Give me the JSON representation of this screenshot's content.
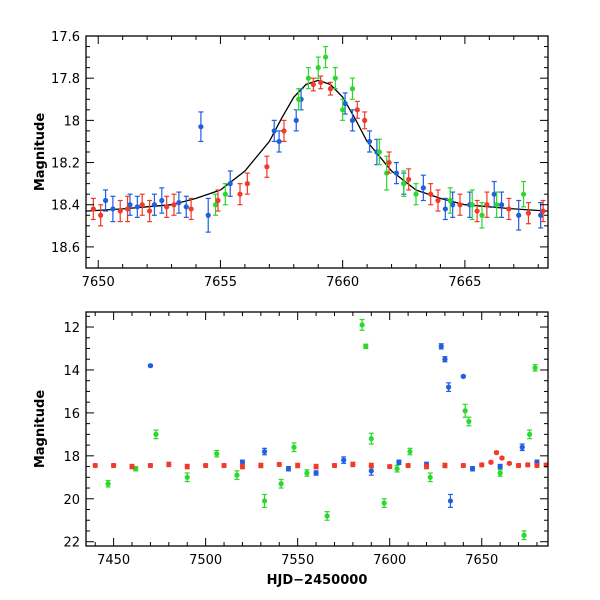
{
  "chart_data": [
    {
      "type": "scatter",
      "panel": "top",
      "xlabel": "",
      "ylabel": "Magnitude",
      "xlim": [
        7649.5,
        7668.4
      ],
      "ylim": [
        18.7,
        17.6
      ],
      "y_inverted": true,
      "xticks": [
        7650,
        7655,
        7660,
        7665
      ],
      "yticks": [
        17.6,
        17.8,
        18,
        18.2,
        18.4,
        18.6
      ],
      "ytick_labels": [
        "17.6",
        "17.8",
        "18",
        "18.2",
        "18.4",
        "18.6"
      ],
      "model": {
        "name": "model",
        "color": "#000000",
        "x": [
          7649.5,
          7651,
          7652,
          7653,
          7654,
          7655,
          7656,
          7657,
          7657.5,
          7658,
          7658.5,
          7659,
          7659.5,
          7660,
          7660.5,
          7661,
          7662,
          7663,
          7664,
          7665,
          7666,
          7667,
          7668.4
        ],
        "y": [
          18.43,
          18.42,
          18.41,
          18.4,
          18.37,
          18.33,
          18.24,
          18.1,
          17.99,
          17.89,
          17.83,
          17.81,
          17.83,
          17.89,
          17.99,
          18.1,
          18.24,
          18.33,
          18.37,
          18.4,
          18.41,
          18.42,
          18.43
        ]
      },
      "series": [
        {
          "name": "blue",
          "color": "#1f5fe0",
          "x": [
            7650.3,
            7650.6,
            7651.3,
            7651.6,
            7652.3,
            7652.6,
            7653.3,
            7653.6,
            7654.2,
            7654.5,
            7655.4,
            7657.2,
            7657.4,
            7658.1,
            7658.3,
            7660.1,
            7660.4,
            7661.1,
            7661.4,
            7662.2,
            7662.5,
            7663.3,
            7664.2,
            7664.5,
            7665.2,
            7666.2,
            7666.5,
            7667.2,
            7668.1
          ],
          "y": [
            18.38,
            18.42,
            18.4,
            18.41,
            18.4,
            18.38,
            18.39,
            18.41,
            18.03,
            18.45,
            18.3,
            18.05,
            18.1,
            18.0,
            17.9,
            17.92,
            18.0,
            18.1,
            18.15,
            18.25,
            18.3,
            18.32,
            18.42,
            18.4,
            18.4,
            18.35,
            18.4,
            18.45,
            18.45
          ],
          "err": [
            0.05,
            0.06,
            0.05,
            0.05,
            0.05,
            0.06,
            0.05,
            0.05,
            0.07,
            0.08,
            0.06,
            0.05,
            0.05,
            0.05,
            0.05,
            0.05,
            0.05,
            0.05,
            0.06,
            0.05,
            0.05,
            0.06,
            0.05,
            0.06,
            0.06,
            0.06,
            0.06,
            0.07,
            0.06
          ]
        },
        {
          "name": "green",
          "color": "#2bd82b",
          "x": [
            7654.8,
            7655.2,
            7658.2,
            7658.6,
            7659.0,
            7659.3,
            7659.7,
            7660.0,
            7660.4,
            7661.5,
            7661.8,
            7662.5,
            7663.0,
            7664.4,
            7665.3,
            7665.7,
            7666.3,
            7667.4
          ],
          "y": [
            18.4,
            18.35,
            17.9,
            17.8,
            17.75,
            17.7,
            17.8,
            17.95,
            17.85,
            18.15,
            18.25,
            18.3,
            18.35,
            18.38,
            18.4,
            18.45,
            18.4,
            18.35
          ],
          "err": [
            0.05,
            0.05,
            0.05,
            0.05,
            0.05,
            0.05,
            0.05,
            0.05,
            0.05,
            0.06,
            0.08,
            0.06,
            0.05,
            0.06,
            0.07,
            0.06,
            0.06,
            0.06
          ]
        },
        {
          "name": "red",
          "color": "#f03a2a",
          "x": [
            7649.8,
            7650.1,
            7650.9,
            7651.2,
            7651.8,
            7652.1,
            7652.8,
            7653.1,
            7653.8,
            7654.9,
            7655.8,
            7656.1,
            7656.9,
            7657.6,
            7658.8,
            7659.1,
            7659.5,
            7660.6,
            7660.9,
            7661.9,
            7662.7,
            7663.6,
            7663.9,
            7664.8,
            7665.5,
            7665.9,
            7666.8,
            7667.6,
            7668.2
          ],
          "y": [
            18.42,
            18.45,
            18.43,
            18.42,
            18.4,
            18.43,
            18.41,
            18.4,
            18.42,
            18.38,
            18.35,
            18.3,
            18.22,
            18.05,
            17.83,
            17.82,
            17.85,
            17.95,
            18.0,
            18.2,
            18.28,
            18.35,
            18.38,
            18.4,
            18.43,
            18.4,
            18.42,
            18.44,
            18.43
          ],
          "err": [
            0.05,
            0.05,
            0.05,
            0.06,
            0.05,
            0.05,
            0.05,
            0.05,
            0.05,
            0.05,
            0.05,
            0.05,
            0.05,
            0.05,
            0.03,
            0.03,
            0.03,
            0.04,
            0.04,
            0.05,
            0.05,
            0.05,
            0.05,
            0.05,
            0.05,
            0.06,
            0.05,
            0.05,
            0.05
          ]
        }
      ]
    },
    {
      "type": "scatter",
      "panel": "bottom",
      "xlabel": "HJD−2450000",
      "ylabel": "Magnitude",
      "xlim": [
        7435,
        7686
      ],
      "ylim": [
        22.2,
        11.3
      ],
      "y_inverted": true,
      "xticks": [
        7450,
        7500,
        7550,
        7600,
        7650
      ],
      "yticks": [
        12,
        14,
        16,
        18,
        20,
        22
      ],
      "series": [
        {
          "name": "blue",
          "color": "#1f5fe0",
          "x": [
            7470,
            7520,
            7532,
            7545,
            7560,
            7575,
            7590,
            7605,
            7620,
            7628,
            7630,
            7632,
            7633,
            7640,
            7645,
            7660,
            7672,
            7680
          ],
          "y": [
            13.8,
            18.3,
            17.8,
            18.6,
            18.8,
            18.2,
            18.7,
            18.3,
            18.4,
            12.9,
            13.5,
            14.8,
            20.1,
            14.3,
            18.6,
            18.5,
            17.6,
            18.3
          ],
          "err": [
            0.05,
            0.1,
            0.15,
            0.1,
            0.1,
            0.15,
            0.2,
            0.1,
            0.1,
            0.12,
            0.12,
            0.2,
            0.3,
            0.05,
            0.1,
            0.1,
            0.15,
            0.1
          ]
        },
        {
          "name": "green",
          "color": "#2bd82b",
          "x": [
            7447,
            7462,
            7473,
            7490,
            7506,
            7517,
            7532,
            7541,
            7548,
            7555,
            7566,
            7585,
            7587,
            7590,
            7597,
            7604,
            7611,
            7622,
            7641,
            7643,
            7660,
            7673,
            7676,
            7679
          ],
          "y": [
            19.3,
            18.6,
            17.0,
            19.0,
            17.9,
            18.9,
            20.1,
            19.3,
            17.6,
            18.8,
            20.8,
            11.9,
            12.9,
            17.2,
            20.2,
            18.6,
            17.8,
            19.0,
            15.9,
            16.4,
            18.8,
            21.7,
            17.0,
            13.9
          ],
          "err": [
            0.15,
            0.1,
            0.2,
            0.2,
            0.15,
            0.2,
            0.3,
            0.2,
            0.2,
            0.15,
            0.2,
            0.25,
            0.1,
            0.25,
            0.2,
            0.15,
            0.15,
            0.2,
            0.3,
            0.2,
            0.15,
            0.2,
            0.2,
            0.15
          ]
        },
        {
          "name": "red",
          "color": "#f03a2a",
          "x": [
            7440,
            7450,
            7460,
            7470,
            7480,
            7490,
            7500,
            7510,
            7520,
            7530,
            7540,
            7550,
            7560,
            7570,
            7580,
            7590,
            7600,
            7610,
            7620,
            7630,
            7640,
            7650,
            7655,
            7658,
            7661,
            7665,
            7670,
            7675,
            7680,
            7685
          ],
          "y": [
            18.45,
            18.45,
            18.5,
            18.45,
            18.4,
            18.5,
            18.45,
            18.45,
            18.5,
            18.45,
            18.4,
            18.45,
            18.5,
            18.45,
            18.4,
            18.45,
            18.5,
            18.45,
            18.5,
            18.45,
            18.45,
            18.42,
            18.3,
            17.85,
            18.1,
            18.35,
            18.45,
            18.42,
            18.45,
            18.43
          ],
          "err": [
            0.08,
            0.08,
            0.1,
            0.08,
            0.1,
            0.1,
            0.08,
            0.08,
            0.1,
            0.1,
            0.08,
            0.1,
            0.1,
            0.08,
            0.1,
            0.1,
            0.08,
            0.08,
            0.1,
            0.1,
            0.08,
            0.08,
            0.05,
            0.05,
            0.05,
            0.05,
            0.08,
            0.08,
            0.08,
            0.08
          ]
        }
      ]
    }
  ]
}
